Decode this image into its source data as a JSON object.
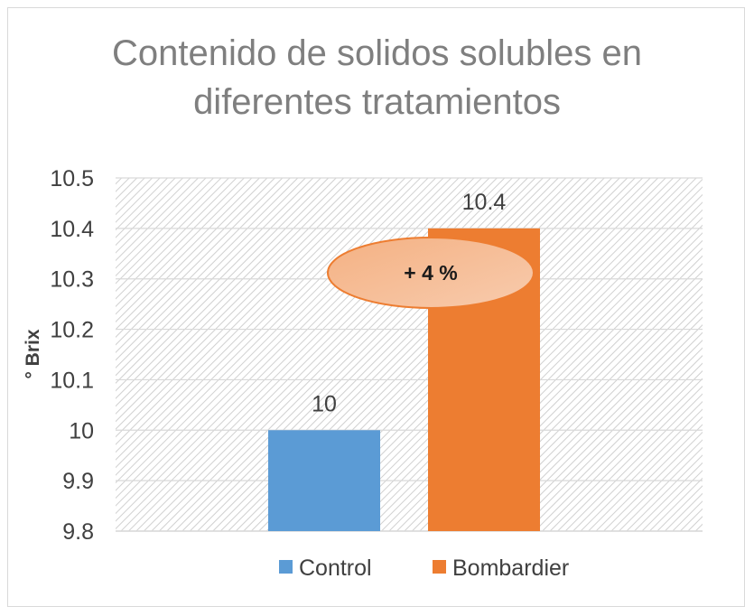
{
  "chart_data": {
    "type": "bar",
    "title_lines": [
      "Contenido de solidos solubles en",
      "diferentes tratamientos"
    ],
    "xlabel": "",
    "ylabel": "° Brix",
    "ylim": [
      9.8,
      10.5
    ],
    "yticks": [
      "10.5",
      "10.4",
      "10.3",
      "10.2",
      "10.1",
      "10",
      "9.9",
      "9.8"
    ],
    "ytick_values": [
      10.5,
      10.4,
      10.3,
      10.2,
      10.1,
      10.0,
      9.9,
      9.8
    ],
    "grid": true,
    "legend_position": "bottom",
    "series": [
      {
        "name": "Control",
        "values": [
          10
        ],
        "color": "#5b9bd5",
        "label": "10"
      },
      {
        "name": "Bombardier",
        "values": [
          10.4
        ],
        "color": "#ed7d31",
        "label": "10.4"
      }
    ],
    "annotation": "+ 4 %"
  }
}
